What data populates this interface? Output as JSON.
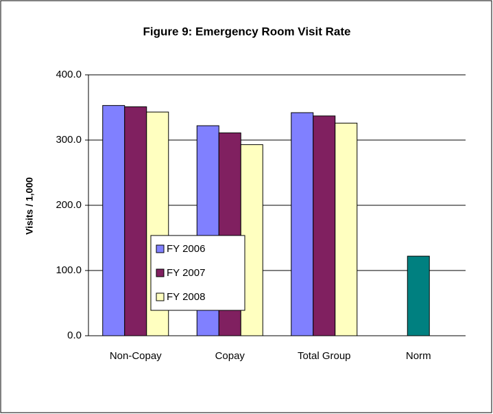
{
  "chart_data": {
    "type": "bar",
    "title": "Figure 9:  Emergency Room Visit Rate",
    "y_label": "Visits / 1,000",
    "categories": [
      "Non-Copay",
      "Copay",
      "Total Group",
      "Norm"
    ],
    "series": [
      {
        "name": "FY 2006",
        "color": "#8080ff",
        "values": [
          353,
          322,
          342,
          null
        ]
      },
      {
        "name": "FY 2007",
        "color": "#802060",
        "values": [
          351,
          311,
          337,
          null
        ]
      },
      {
        "name": "FY 2008",
        "color": "#ffffc0",
        "values": [
          343,
          293,
          326,
          null
        ]
      },
      {
        "color": "#008080",
        "values": [
          null,
          null,
          null,
          122
        ],
        "in_legend": false
      }
    ],
    "ylim": [
      0,
      400
    ],
    "yticks": [
      {
        "value": 0,
        "label": "0.0"
      },
      {
        "value": 100,
        "label": "100.0"
      },
      {
        "value": 200,
        "label": "200.0"
      },
      {
        "value": 300,
        "label": "300.0"
      },
      {
        "value": 400,
        "label": "400.0"
      }
    ],
    "grid": true,
    "legend": "left"
  }
}
